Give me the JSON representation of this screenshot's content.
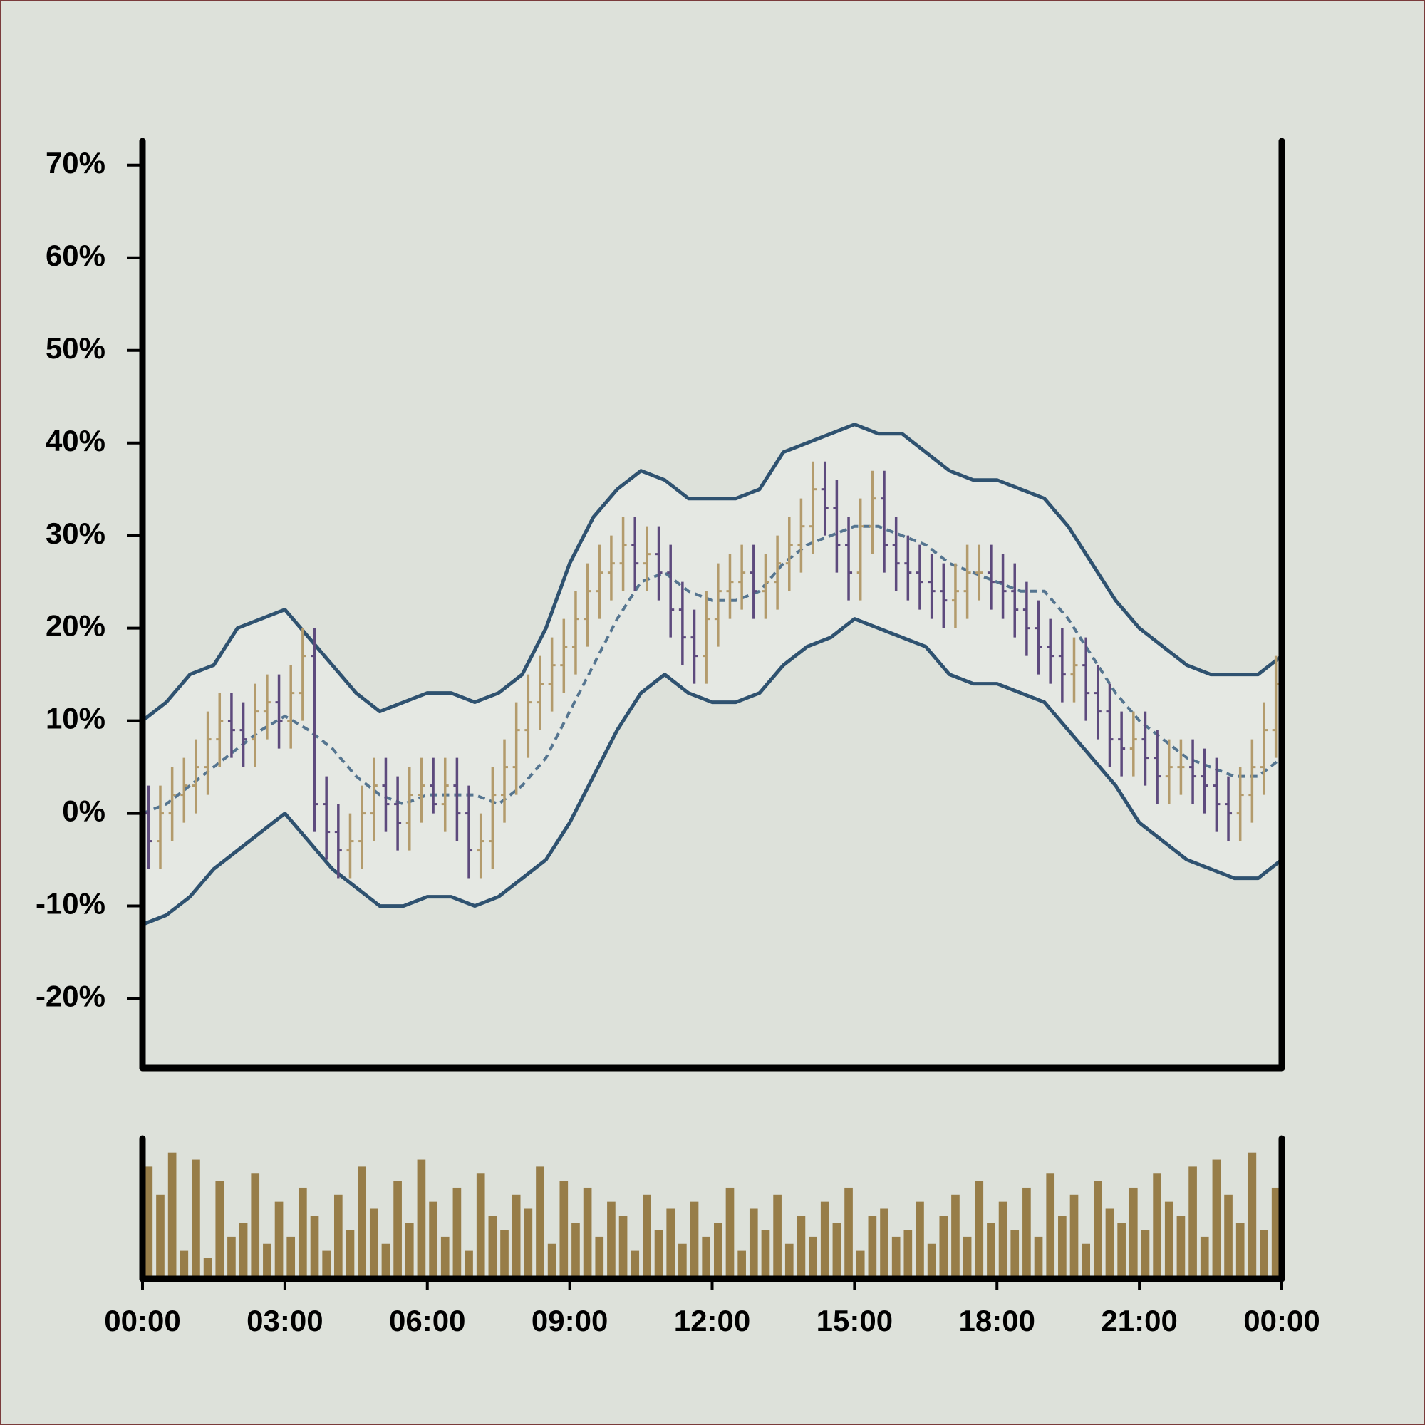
{
  "chart_data": {
    "type": "ohlc",
    "x": [
      0.125,
      0.375,
      0.625,
      0.875,
      1.125,
      1.375,
      1.625,
      1.875,
      2.125,
      2.375,
      2.625,
      2.875,
      3.125,
      3.375,
      3.625,
      3.875,
      4.125,
      4.375,
      4.625,
      4.875,
      5.125,
      5.375,
      5.625,
      5.875,
      6.125,
      6.375,
      6.625,
      6.875,
      7.125,
      7.375,
      7.625,
      7.875,
      8.125,
      8.375,
      8.625,
      8.875,
      9.125,
      9.375,
      9.625,
      9.875,
      10.125,
      10.375,
      10.625,
      10.875,
      11.125,
      11.375,
      11.625,
      11.875,
      12.125,
      12.375,
      12.625,
      12.875,
      13.125,
      13.375,
      13.625,
      13.875,
      14.125,
      14.375,
      14.625,
      14.875,
      15.125,
      15.375,
      15.625,
      15.875,
      16.125,
      16.375,
      16.625,
      16.875,
      17.125,
      17.375,
      17.625,
      17.875,
      18.125,
      18.375,
      18.625,
      18.875,
      19.125,
      19.375,
      19.625,
      19.875,
      20.125,
      20.375,
      20.625,
      20.875,
      21.125,
      21.375,
      21.625,
      21.875,
      22.125,
      22.375,
      22.625,
      22.875,
      23.125,
      23.375,
      23.625,
      23.875
    ],
    "open": [
      0,
      -3,
      0,
      2,
      3,
      5,
      8,
      10,
      9,
      8,
      11,
      12,
      10,
      13,
      17,
      1,
      -2,
      -4,
      -3,
      0,
      3,
      1,
      -1,
      2,
      3,
      1,
      3,
      0,
      -4,
      -3,
      2,
      5,
      9,
      12,
      14,
      16,
      18,
      21,
      24,
      26,
      27,
      29,
      27,
      28,
      26,
      22,
      19,
      17,
      21,
      24,
      25,
      26,
      24,
      25,
      27,
      29,
      31,
      35,
      33,
      29,
      26,
      31,
      34,
      29,
      27,
      26,
      25,
      24,
      23,
      24,
      26,
      26,
      25,
      24,
      22,
      20,
      18,
      17,
      15,
      16,
      13,
      11,
      8,
      7,
      8,
      6,
      4,
      5,
      5,
      4,
      3,
      1,
      0,
      2,
      5,
      9
    ],
    "high": [
      3,
      3,
      5,
      6,
      8,
      11,
      13,
      13,
      12,
      14,
      15,
      15,
      16,
      20,
      20,
      4,
      1,
      0,
      3,
      6,
      6,
      4,
      5,
      6,
      6,
      6,
      6,
      3,
      0,
      5,
      8,
      12,
      15,
      17,
      19,
      21,
      24,
      27,
      29,
      30,
      32,
      32,
      31,
      31,
      29,
      25,
      22,
      24,
      27,
      28,
      29,
      29,
      28,
      30,
      32,
      34,
      38,
      38,
      36,
      32,
      34,
      37,
      37,
      32,
      30,
      29,
      28,
      27,
      27,
      29,
      29,
      29,
      28,
      27,
      25,
      23,
      21,
      20,
      19,
      19,
      16,
      14,
      11,
      11,
      11,
      9,
      8,
      8,
      8,
      7,
      6,
      4,
      5,
      8,
      12,
      17
    ],
    "low": [
      -6,
      -6,
      -3,
      -1,
      0,
      2,
      5,
      6,
      5,
      5,
      8,
      7,
      7,
      10,
      -2,
      -5,
      -7,
      -7,
      -6,
      -3,
      -2,
      -4,
      -4,
      -1,
      0,
      -2,
      -3,
      -7,
      -7,
      -6,
      -1,
      2,
      6,
      9,
      11,
      13,
      15,
      18,
      21,
      23,
      24,
      24,
      24,
      23,
      19,
      16,
      14,
      14,
      18,
      21,
      22,
      21,
      21,
      22,
      24,
      26,
      28,
      30,
      26,
      23,
      23,
      28,
      26,
      24,
      23,
      22,
      21,
      20,
      20,
      21,
      23,
      22,
      21,
      19,
      17,
      15,
      14,
      12,
      12,
      10,
      8,
      5,
      4,
      4,
      3,
      1,
      1,
      2,
      1,
      0,
      -2,
      -3,
      -3,
      -1,
      2,
      6
    ],
    "close": [
      -3,
      0,
      2,
      3,
      5,
      8,
      10,
      9,
      8,
      11,
      12,
      10,
      13,
      17,
      1,
      -2,
      -4,
      -3,
      0,
      3,
      1,
      -1,
      2,
      3,
      1,
      3,
      0,
      -4,
      -3,
      2,
      5,
      9,
      12,
      14,
      16,
      18,
      21,
      24,
      26,
      27,
      29,
      27,
      28,
      26,
      22,
      19,
      17,
      21,
      24,
      25,
      26,
      24,
      25,
      27,
      29,
      31,
      35,
      33,
      29,
      26,
      31,
      34,
      29,
      27,
      26,
      25,
      24,
      23,
      24,
      26,
      26,
      25,
      24,
      22,
      20,
      18,
      17,
      15,
      16,
      13,
      11,
      8,
      7,
      8,
      6,
      4,
      5,
      5,
      4,
      3,
      1,
      0,
      2,
      5,
      9,
      14
    ],
    "up_color": "#b39b6c",
    "down_color": "#5d4a7d",
    "bands": {
      "x": [
        0,
        0.5,
        1,
        1.5,
        2,
        2.5,
        3,
        3.5,
        4,
        4.5,
        5,
        5.5,
        6,
        6.5,
        7,
        7.5,
        8,
        8.5,
        9,
        9.5,
        10,
        10.5,
        11,
        11.5,
        12,
        12.5,
        13,
        13.5,
        14,
        14.5,
        15,
        15.5,
        16,
        16.5,
        17,
        17.5,
        18,
        18.5,
        19,
        19.5,
        20,
        20.5,
        21,
        21.5,
        22,
        22.5,
        23,
        23.5,
        24
      ],
      "upper": [
        10,
        12,
        15,
        16,
        20,
        21,
        22,
        19,
        16,
        13,
        11,
        12,
        13,
        13,
        12,
        13,
        15,
        20,
        27,
        32,
        35,
        37,
        36,
        34,
        34,
        34,
        35,
        39,
        40,
        41,
        42,
        41,
        41,
        39,
        37,
        36,
        36,
        35,
        34,
        31,
        27,
        23,
        20,
        18,
        16,
        15,
        15,
        15,
        17
      ],
      "middle": [
        0,
        1,
        3,
        5,
        7,
        9,
        10.5,
        9,
        7,
        4,
        2,
        1,
        2,
        2,
        2,
        1,
        3,
        6,
        11,
        16,
        21,
        25,
        26,
        24,
        23,
        23,
        24,
        27,
        29,
        30,
        31,
        31,
        30,
        29,
        27,
        26,
        25,
        24,
        24,
        21,
        17,
        13,
        10,
        8,
        6,
        5,
        4,
        4,
        6
      ],
      "lower": [
        -12,
        -11,
        -9,
        -6,
        -4,
        -2,
        0,
        -3,
        -6,
        -8,
        -10,
        -10,
        -9,
        -9,
        -10,
        -9,
        -7,
        -5,
        -1,
        4,
        9,
        13,
        15,
        13,
        12,
        12,
        13,
        16,
        18,
        19,
        21,
        20,
        19,
        18,
        15,
        14,
        14,
        13,
        12,
        9,
        6,
        3,
        -1,
        -3,
        -5,
        -6,
        -7,
        -7,
        -5
      ],
      "color": "#2f5270",
      "middle_color": "#557590",
      "fill": "#e5e8e3"
    },
    "volume": {
      "values": [
        80,
        60,
        90,
        20,
        85,
        15,
        70,
        30,
        40,
        75,
        25,
        55,
        30,
        65,
        45,
        20,
        60,
        35,
        80,
        50,
        25,
        70,
        40,
        85,
        55,
        30,
        65,
        20,
        75,
        45,
        35,
        60,
        50,
        80,
        25,
        70,
        40,
        65,
        30,
        55,
        45,
        20,
        60,
        35,
        50,
        25,
        55,
        30,
        40,
        65,
        20,
        50,
        35,
        60,
        25,
        45,
        30,
        55,
        40,
        65,
        20,
        45,
        50,
        30,
        35,
        55,
        25,
        45,
        60,
        30,
        70,
        40,
        55,
        35,
        65,
        30,
        75,
        45,
        60,
        25,
        70,
        50,
        40,
        65,
        35,
        75,
        55,
        45,
        80,
        30,
        85,
        60,
        40,
        90,
        35,
        65
      ],
      "color": "#977d48",
      "ylim": [
        0,
        100
      ]
    },
    "xlim": [
      0,
      24
    ],
    "xticks": [
      {
        "value": 0,
        "label": "00:00"
      },
      {
        "value": 3,
        "label": "03:00"
      },
      {
        "value": 6,
        "label": "06:00"
      },
      {
        "value": 9,
        "label": "09:00"
      },
      {
        "value": 12,
        "label": "12:00"
      },
      {
        "value": 15,
        "label": "15:00"
      },
      {
        "value": 18,
        "label": "18:00"
      },
      {
        "value": 21,
        "label": "21:00"
      },
      {
        "value": 24,
        "label": "00:00"
      }
    ],
    "ylim": [
      -27.5,
      72.6
    ],
    "yticks": [
      {
        "value": -20,
        "label": "-20%"
      },
      {
        "value": -10,
        "label": "-10%"
      },
      {
        "value": 0,
        "label": "0%"
      },
      {
        "value": 10,
        "label": "10%"
      },
      {
        "value": 20,
        "label": "20%"
      },
      {
        "value": 30,
        "label": "30%"
      },
      {
        "value": 40,
        "label": "40%"
      },
      {
        "value": 50,
        "label": "50%"
      },
      {
        "value": 60,
        "label": "60%"
      },
      {
        "value": 70,
        "label": "70%"
      }
    ]
  }
}
